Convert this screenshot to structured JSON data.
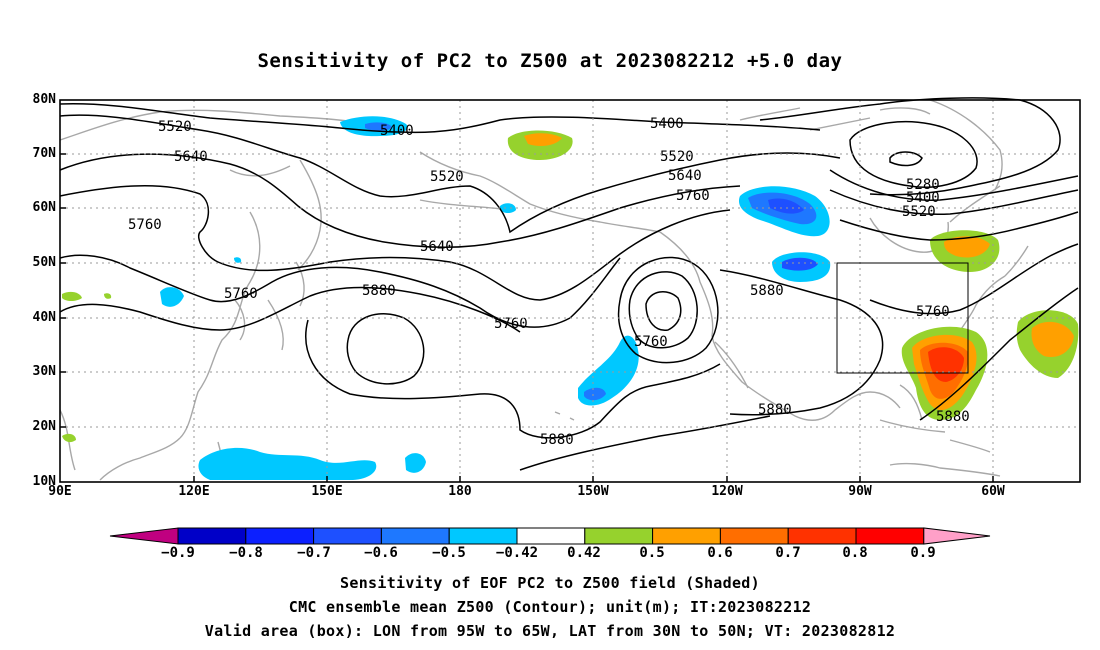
{
  "title": "Sensitivity of PC2 to Z500 at 2023082212 +5.0 day",
  "lat_labels": [
    "80N",
    "70N",
    "60N",
    "50N",
    "40N",
    "30N",
    "20N",
    "10N"
  ],
  "lon_labels": [
    "90E",
    "120E",
    "150E",
    "180",
    "150W",
    "120W",
    "90W",
    "60W"
  ],
  "contour_labels": [
    "5520",
    "5400",
    "5400",
    "5280",
    "5400",
    "5520",
    "5640",
    "5520",
    "5520",
    "5640",
    "5760",
    "5760",
    "5640",
    "5760",
    "5760",
    "5880",
    "5880",
    "5760",
    "5760",
    "5880",
    "5880",
    "5880"
  ],
  "colorbar": {
    "labels": [
      "−0.9",
      "−0.8",
      "−0.7",
      "−0.6",
      "−0.5",
      "−0.42",
      "0.42",
      "0.5",
      "0.6",
      "0.7",
      "0.8",
      "0.9"
    ],
    "colors": [
      "#c00080",
      "#0000c8",
      "#0c20ff",
      "#1e50ff",
      "#1e78ff",
      "#00c8ff",
      "#ffffff",
      "#96d22d",
      "#ffa000",
      "#ff6e00",
      "#ff3200",
      "#ff0000",
      "#ffa0c8"
    ]
  },
  "captions": [
    "Sensitivity of EOF PC2 to Z500 field (Shaded)",
    "CMC ensemble mean Z500 (Contour); unit(m); IT:2023082212",
    "Valid area (box): LON from 95W to 65W, LAT from 30N to 50N; VT: 2023082812"
  ]
}
